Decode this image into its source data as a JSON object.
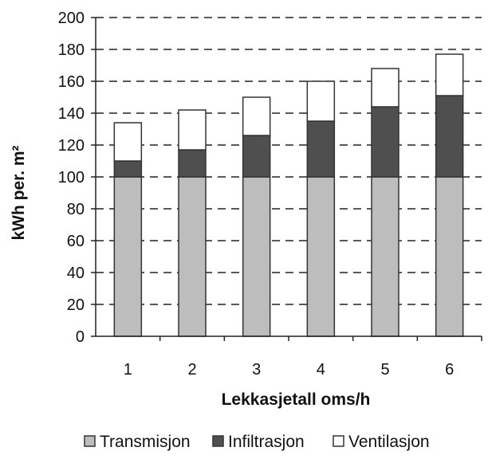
{
  "chart_data": {
    "type": "bar",
    "stacked": true,
    "categories": [
      "1",
      "2",
      "3",
      "4",
      "5",
      "6"
    ],
    "series": [
      {
        "name": "Transmisjon",
        "values": [
          100,
          100,
          100,
          100,
          100,
          100
        ],
        "color": "#bdbdbd"
      },
      {
        "name": "Infiltrasjon",
        "values": [
          10,
          17,
          26,
          35,
          44,
          51
        ],
        "color": "#4f4f4f"
      },
      {
        "name": "Ventilasjon",
        "values": [
          24,
          25,
          24,
          25,
          24,
          26
        ],
        "color": "#ffffff"
      }
    ],
    "xlabel": "Lekkasjetall oms/h",
    "ylabel": "kWh per. m²",
    "ylim": [
      0,
      200
    ],
    "yticks": [
      "0",
      "20",
      "40",
      "60",
      "80",
      "100",
      "120",
      "140",
      "160",
      "180",
      "200"
    ],
    "grid": "dashed horizontal",
    "legend_position": "bottom"
  }
}
